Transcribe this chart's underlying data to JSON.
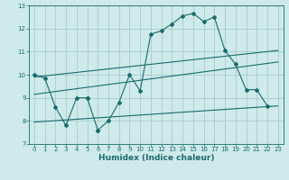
{
  "title": "",
  "xlabel": "Humidex (Indice chaleur)",
  "ylabel": "",
  "bg_color": "#ceeaea",
  "grid_color": "#a8cccc",
  "line_color": "#1a6b6b",
  "xlim": [
    -0.5,
    23.5
  ],
  "ylim": [
    7,
    13
  ],
  "yticks": [
    7,
    8,
    9,
    10,
    11,
    12,
    13
  ],
  "xticks": [
    0,
    1,
    2,
    3,
    4,
    5,
    6,
    7,
    8,
    9,
    10,
    11,
    12,
    13,
    14,
    15,
    16,
    17,
    18,
    19,
    20,
    21,
    22,
    23
  ],
  "line1_x": [
    0,
    1,
    2,
    3,
    4,
    5,
    5,
    6,
    6,
    7,
    8,
    9,
    10,
    11,
    12,
    13,
    14,
    15,
    16,
    17,
    18,
    19,
    20,
    21,
    22
  ],
  "line1_y": [
    10.0,
    9.85,
    8.6,
    7.8,
    9.0,
    9.0,
    9.0,
    7.6,
    7.6,
    8.0,
    8.8,
    10.0,
    9.3,
    11.75,
    11.9,
    12.2,
    12.55,
    12.65,
    12.3,
    12.5,
    11.05,
    10.45,
    9.35,
    9.35,
    8.65
  ],
  "line2_x": [
    0,
    23
  ],
  "line2_y": [
    9.9,
    11.05
  ],
  "line3_x": [
    0,
    23
  ],
  "line3_y": [
    9.15,
    10.55
  ],
  "line4_x": [
    0,
    23
  ],
  "line4_y": [
    7.95,
    8.65
  ]
}
